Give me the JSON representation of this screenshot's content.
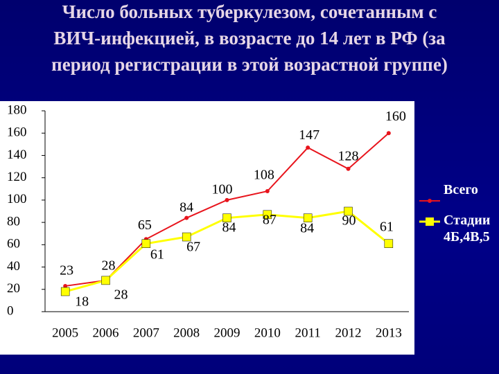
{
  "chart_data": {
    "type": "line",
    "title": [
      "Число больных туберкулезом, сочетанным с",
      "ВИЧ-инфекцией, в возрасте до 14 лет в РФ (за",
      "период регистрации в этой возрастной группе)"
    ],
    "categories": [
      "2005",
      "2006",
      "2007",
      "2008",
      "2009",
      "2010",
      "2011",
      "2012",
      "2013"
    ],
    "series": [
      {
        "name": "Всего",
        "color": "#e8141c",
        "values": [
          23,
          28,
          65,
          84,
          100,
          108,
          147,
          128,
          160
        ]
      },
      {
        "name": "Стадии 4Б,4В,5",
        "color": "#ffff00",
        "values": [
          18,
          28,
          61,
          67,
          84,
          87,
          84,
          90,
          61
        ]
      }
    ],
    "ylim": [
      0,
      180
    ],
    "yticks": [
      0,
      20,
      40,
      60,
      80,
      100,
      120,
      140,
      160,
      180
    ],
    "grid": false
  }
}
